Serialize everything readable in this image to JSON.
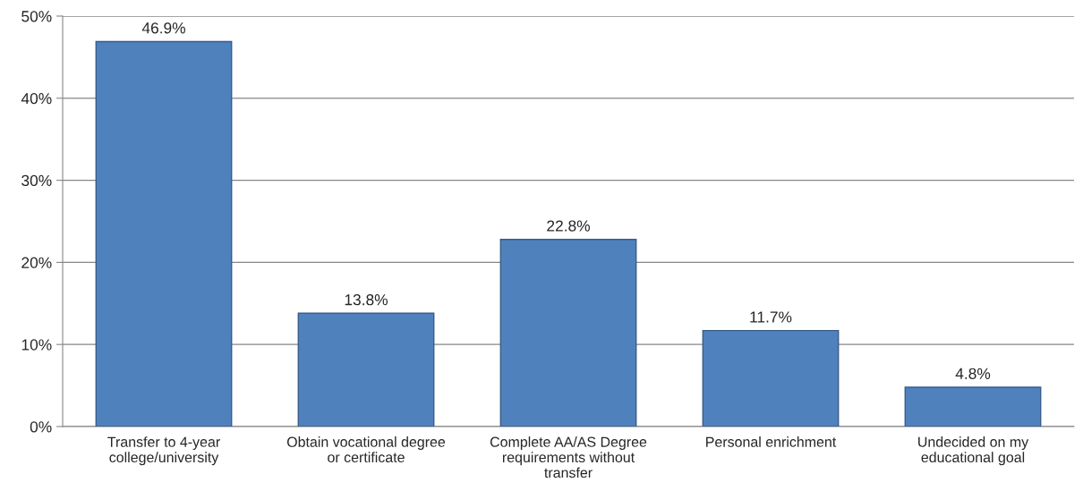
{
  "chart_data": {
    "type": "bar",
    "categories": [
      "Transfer to 4-year\ncollege/university",
      "Obtain vocational degree\nor certificate",
      "Complete AA/AS Degree\nrequirements without\ntransfer",
      "Personal enrichment",
      "Undecided on my\neducational goal"
    ],
    "values": [
      46.9,
      13.8,
      22.8,
      11.7,
      4.8
    ],
    "value_labels": [
      "46.9%",
      "13.8%",
      "22.8%",
      "11.7%",
      "4.8%"
    ],
    "color": "#4f81bd",
    "ylim": [
      0,
      50
    ],
    "yticks": [
      {
        "value": 0,
        "label": "0%"
      },
      {
        "value": 10,
        "label": "10%"
      },
      {
        "value": 20,
        "label": "20%"
      },
      {
        "value": 30,
        "label": "30%"
      },
      {
        "value": 40,
        "label": "40%"
      },
      {
        "value": 50,
        "label": "50%"
      }
    ],
    "grid": "y",
    "legend": false
  }
}
